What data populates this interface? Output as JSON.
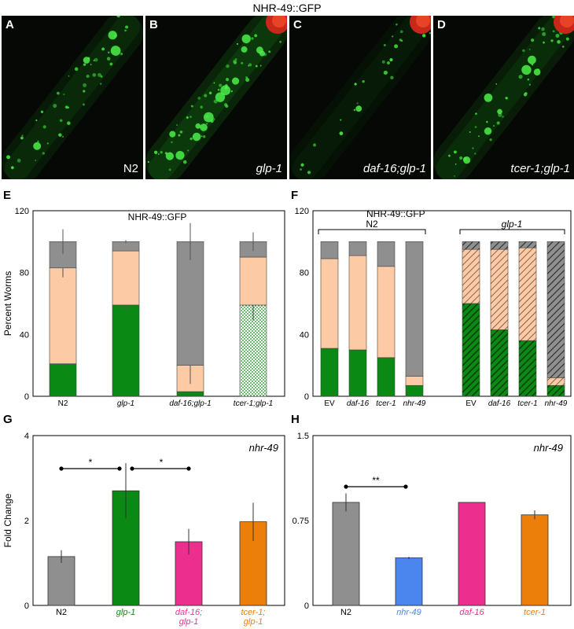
{
  "figure_title": "NHR-49::GFP",
  "micrographs": [
    {
      "letter": "A",
      "label": "N2",
      "italic": false,
      "red_spot": false
    },
    {
      "letter": "B",
      "label": "glp-1",
      "italic": true,
      "red_spot": true
    },
    {
      "letter": "C",
      "label": "daf-16;glp-1",
      "italic": true,
      "red_spot": true
    },
    {
      "letter": "D",
      "label": "tcer-1;glp-1",
      "italic": true,
      "red_spot": true
    }
  ],
  "panels": {
    "E": {
      "letter": "E",
      "inner_title": "NHR-49::GFP",
      "ylabel": "Percent Worms"
    },
    "F": {
      "letter": "F",
      "inner_title": "NHR-49::GFP",
      "group_left": "N2",
      "group_right": "glp-1"
    },
    "G": {
      "letter": "G",
      "gene": "nhr-49",
      "ylabel": "Fold Change"
    },
    "H": {
      "letter": "H",
      "gene": "nhr-49"
    }
  },
  "colors": {
    "green": "#0a8a14",
    "peach": "#fccaa4",
    "gray": "#8f8f8f",
    "pink": "#ec2f8f",
    "orange": "#ec7f0a",
    "blue": "#4a86ee"
  },
  "chart_data": [
    {
      "panel": "E",
      "type": "bar",
      "stacked": true,
      "categories": [
        "N2",
        "glp-1",
        "daf-16;glp-1",
        "tcer-1;glp-1"
      ],
      "series": [
        {
          "values": [
            21,
            59,
            3,
            59
          ],
          "errors": [
            2,
            4,
            0,
            10
          ]
        },
        {
          "values": [
            62,
            35,
            17,
            31
          ],
          "errors": [
            6,
            0,
            12,
            0
          ]
        },
        {
          "values": [
            17,
            6,
            80,
            10
          ],
          "errors": [
            8,
            1,
            12,
            6
          ]
        }
      ],
      "ylabel": "Percent Worms",
      "ylim": [
        0,
        120
      ],
      "yticks": [
        0,
        40,
        80,
        120
      ]
    },
    {
      "panel": "F",
      "type": "bar",
      "stacked": true,
      "groups": [
        "N2",
        "glp-1"
      ],
      "categories": [
        "EV",
        "daf-16",
        "tcer-1",
        "nhr-49",
        "EV",
        "daf-16",
        "tcer-1",
        "nhr-49"
      ],
      "series": [
        {
          "values": [
            31,
            30,
            25,
            7,
            60,
            43,
            36,
            7
          ]
        },
        {
          "values": [
            58,
            61,
            59,
            6,
            35,
            52,
            60,
            5
          ]
        },
        {
          "values": [
            11,
            9,
            16,
            87,
            5,
            5,
            4,
            88
          ]
        }
      ],
      "ylim": [
        0,
        120
      ],
      "yticks": [
        0,
        40,
        80,
        120
      ]
    },
    {
      "panel": "G",
      "type": "bar",
      "categories": [
        "N2",
        "glp-1",
        "daf-16; glp-1",
        "tcer-1; glp-1"
      ],
      "values": [
        1.15,
        2.7,
        1.5,
        1.97
      ],
      "errors": [
        0.15,
        0.65,
        0.3,
        0.45
      ],
      "ylabel": "Fold Change",
      "ylim": [
        0,
        4
      ],
      "yticks": [
        0,
        2,
        4
      ],
      "significance": [
        {
          "from": 0,
          "to": 1,
          "label": "*"
        },
        {
          "from": 1,
          "to": 2,
          "label": "*"
        }
      ]
    },
    {
      "panel": "H",
      "type": "bar",
      "categories": [
        "N2",
        "nhr-49",
        "daf-16",
        "tcer-1"
      ],
      "values": [
        0.91,
        0.42,
        0.91,
        0.8
      ],
      "errors": [
        0.08,
        0.01,
        0,
        0.04
      ],
      "ylim": [
        0,
        1.5
      ],
      "yticks": [
        0,
        0.75,
        1.5
      ],
      "ytick_labels": [
        "0",
        "0.75",
        "1.5"
      ],
      "significance": [
        {
          "from": 0,
          "to": 1,
          "label": "**"
        }
      ]
    }
  ]
}
